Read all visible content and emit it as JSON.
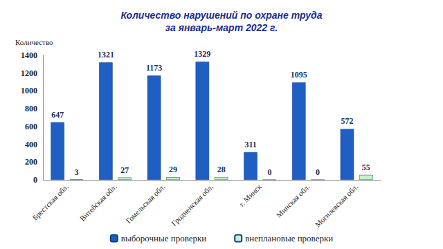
{
  "chart_data": {
    "type": "bar",
    "title": "Количество нарушений по охране труда\nза январь-март 2022 г.",
    "y_label": "Количество",
    "categories": [
      "Брестская обл.",
      "Витебская обл.",
      "Гомельская обл.",
      "Гродненская обл.",
      "г. Минск",
      "Минская обл.",
      "Могилевская обл."
    ],
    "series": [
      {
        "name": "выборочные проверки",
        "color": "#1f5fc4",
        "values": [
          647,
          1321,
          1173,
          1329,
          311,
          1095,
          572
        ]
      },
      {
        "name": "внеплановые проверки",
        "color": "#c8f2c4",
        "values": [
          3,
          27,
          29,
          28,
          0,
          0,
          55
        ]
      }
    ],
    "ylim": [
      0,
      1400
    ],
    "yticks": [
      0,
      200,
      400,
      600,
      800,
      1000,
      1200,
      1400
    ],
    "grid": false,
    "legend": "bottom",
    "data_labels": true
  }
}
